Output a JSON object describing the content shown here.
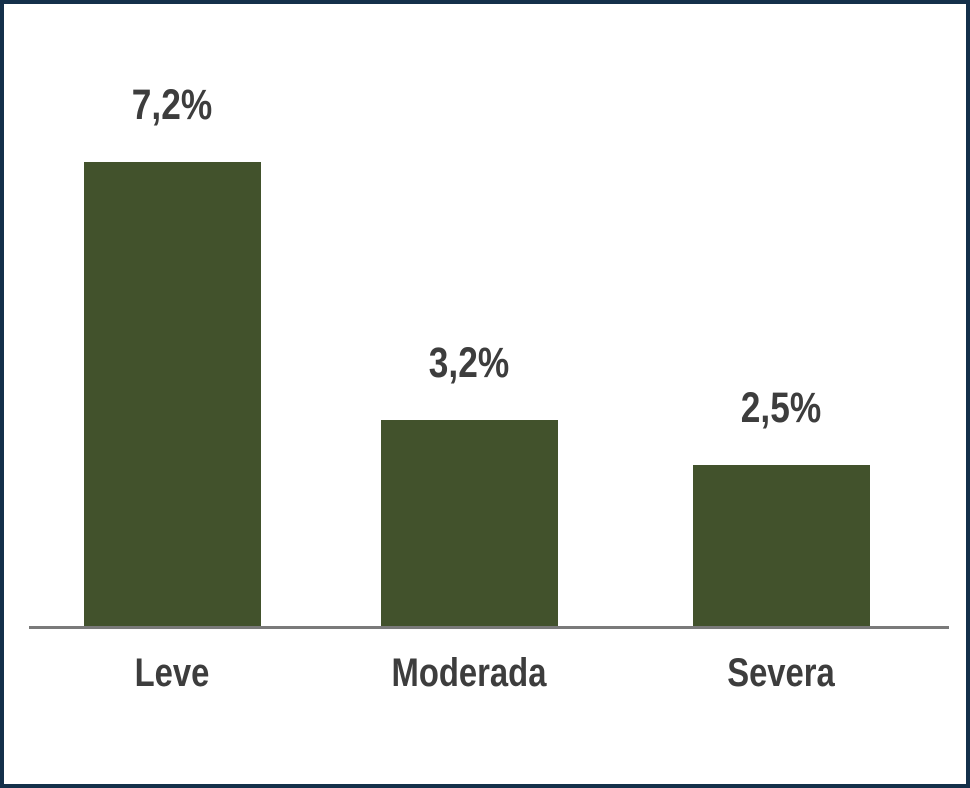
{
  "chart_data": {
    "type": "bar",
    "title": "",
    "xlabel": "",
    "ylabel": "",
    "categories": [
      "Leve",
      "Moderada",
      "Severa"
    ],
    "values": [
      7.2,
      3.2,
      2.5
    ],
    "value_labels": [
      "7,2%",
      "3,2%",
      "2,5%"
    ],
    "ylim": [
      0,
      7.75
    ],
    "grid": false,
    "legend": false,
    "value_label_position": "above-bar",
    "colors": {
      "bar": "#42522c",
      "axis_line": "#7a7a7a",
      "labels": "#3d3d3d",
      "frame_border": "#14304a",
      "background": "#ffffff"
    }
  }
}
